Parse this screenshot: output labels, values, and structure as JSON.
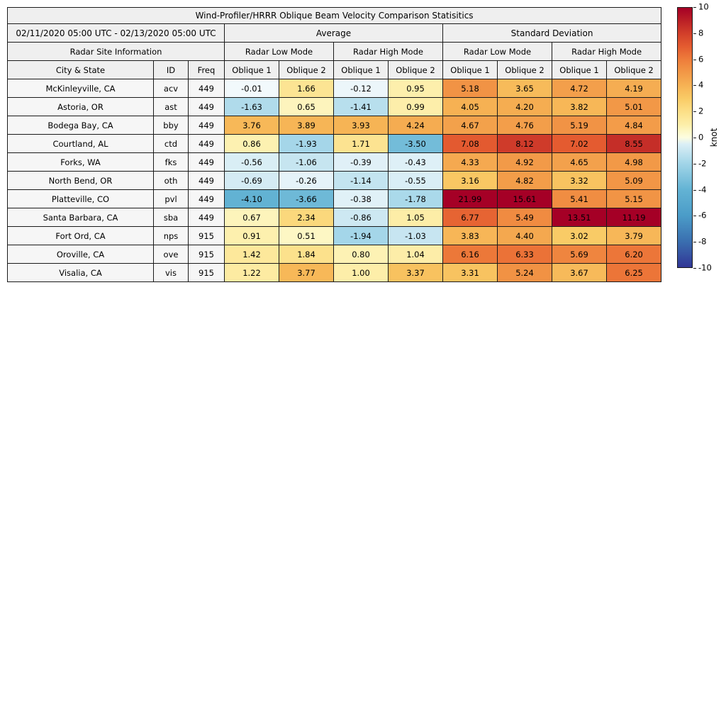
{
  "title": "Wind-Profiler/HRRR Oblique Beam Velocity Comparison Statisitics",
  "header": {
    "date_range": "02/11/2020 05:00 UTC - 02/13/2020 05:00 UTC",
    "group_average": "Average",
    "group_std": "Standard Deviation",
    "site_info": "Radar Site Information",
    "mode_low": "Radar Low Mode",
    "mode_high": "Radar High Mode",
    "col_city": "City & State",
    "col_id": "ID",
    "col_freq": "Freq",
    "oblique1": "Oblique 1",
    "oblique2": "Oblique 2"
  },
  "colorbar": {
    "label": "knot",
    "ticks": [
      10,
      8,
      6,
      4,
      2,
      0,
      -2,
      -4,
      -6,
      -8,
      -10
    ],
    "vmin": -10,
    "vmax": 10
  },
  "colormap": {
    "negative": [
      [
        -10,
        "#313695"
      ],
      [
        -8,
        "#3a6fb0"
      ],
      [
        -6,
        "#4b9cc8"
      ],
      [
        -4,
        "#63b3d4"
      ],
      [
        -2,
        "#a2d5e8"
      ],
      [
        -1,
        "#c8e6f1"
      ],
      [
        -0.3,
        "#e3f2f8"
      ],
      [
        0,
        "#f2f9fc"
      ]
    ],
    "positive": [
      [
        0,
        "#fdfde1"
      ],
      [
        0.5,
        "#fdf7c5"
      ],
      [
        1,
        "#fdeea9"
      ],
      [
        2,
        "#fcdf87"
      ],
      [
        3,
        "#f9cb66"
      ],
      [
        4,
        "#f6b254"
      ],
      [
        5,
        "#f29847"
      ],
      [
        6,
        "#ee7d3b"
      ],
      [
        7,
        "#e45c30"
      ],
      [
        8,
        "#d23f2a"
      ],
      [
        9,
        "#bb2026"
      ],
      [
        10,
        "#a50026"
      ]
    ]
  },
  "chart_data": {
    "type": "heatmap",
    "title": "Wind-Profiler/HRRR Oblique Beam Velocity Comparison Statisitics",
    "date_range": "02/11/2020 05:00 UTC - 02/13/2020 05:00 UTC",
    "value_columns": [
      "Average Radar Low Mode Oblique 1",
      "Average Radar Low Mode Oblique 2",
      "Average Radar High Mode Oblique 1",
      "Average Radar High Mode Oblique 2",
      "Standard Deviation Radar Low Mode Oblique 1",
      "Standard Deviation Radar Low Mode Oblique 2",
      "Standard Deviation Radar High Mode Oblique 1",
      "Standard Deviation Radar High Mode Oblique 2"
    ],
    "color_scale": {
      "units": "knot",
      "vmin": -10,
      "vmax": 10
    },
    "rows": [
      {
        "city": "McKinleyville, CA",
        "id": "acv",
        "freq": "449",
        "values": [
          -0.01,
          1.66,
          -0.12,
          0.95,
          5.18,
          3.65,
          4.72,
          4.19
        ]
      },
      {
        "city": "Astoria, OR",
        "id": "ast",
        "freq": "449",
        "values": [
          -1.63,
          0.65,
          -1.41,
          0.99,
          4.05,
          4.2,
          3.82,
          5.01
        ]
      },
      {
        "city": "Bodega Bay, CA",
        "id": "bby",
        "freq": "449",
        "values": [
          3.76,
          3.89,
          3.93,
          4.24,
          4.67,
          4.76,
          5.19,
          4.84
        ]
      },
      {
        "city": "Courtland, AL",
        "id": "ctd",
        "freq": "449",
        "values": [
          0.86,
          -1.93,
          1.71,
          -3.5,
          7.08,
          8.12,
          7.02,
          8.55
        ]
      },
      {
        "city": "Forks, WA",
        "id": "fks",
        "freq": "449",
        "values": [
          -0.56,
          -1.06,
          -0.39,
          -0.43,
          4.33,
          4.92,
          4.65,
          4.98
        ]
      },
      {
        "city": "North Bend, OR",
        "id": "oth",
        "freq": "449",
        "values": [
          -0.69,
          -0.26,
          -1.14,
          -0.55,
          3.16,
          4.82,
          3.32,
          5.09
        ]
      },
      {
        "city": "Platteville, CO",
        "id": "pvl",
        "freq": "449",
        "values": [
          -4.1,
          -3.66,
          -0.38,
          -1.78,
          21.99,
          15.61,
          5.41,
          5.15
        ]
      },
      {
        "city": "Santa Barbara, CA",
        "id": "sba",
        "freq": "449",
        "values": [
          0.67,
          2.34,
          -0.86,
          1.05,
          6.77,
          5.49,
          13.51,
          11.19
        ]
      },
      {
        "city": "Fort Ord, CA",
        "id": "nps",
        "freq": "915",
        "values": [
          0.91,
          0.51,
          -1.94,
          -1.03,
          3.83,
          4.4,
          3.02,
          3.79
        ]
      },
      {
        "city": "Oroville, CA",
        "id": "ove",
        "freq": "915",
        "values": [
          1.42,
          1.84,
          0.8,
          1.04,
          6.16,
          6.33,
          5.69,
          6.2
        ]
      },
      {
        "city": "Visalia, CA",
        "id": "vis",
        "freq": "915",
        "values": [
          1.22,
          3.77,
          1.0,
          3.37,
          3.31,
          5.24,
          3.67,
          6.25
        ]
      }
    ]
  }
}
